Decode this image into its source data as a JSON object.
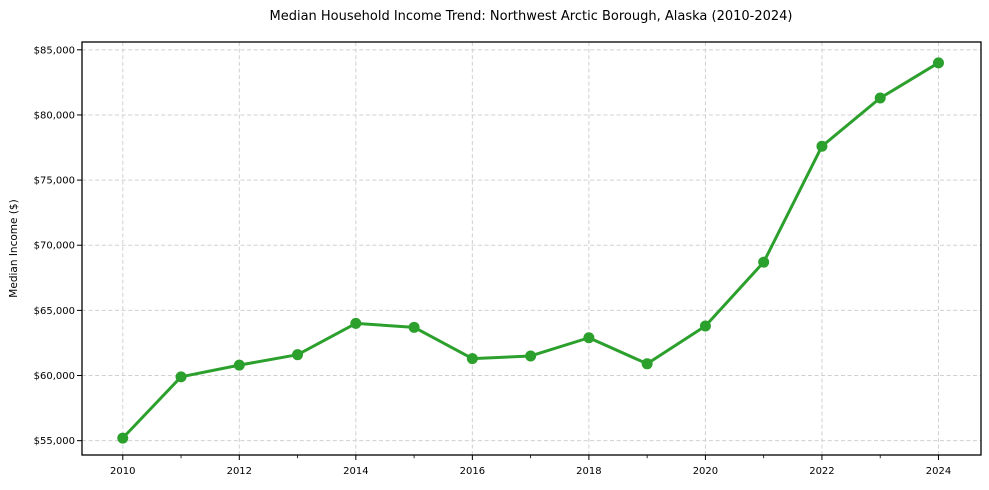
{
  "chart_data": {
    "type": "line",
    "title": "Median Household Income Trend: Northwest Arctic Borough, Alaska (2010-2024)",
    "xlabel": "",
    "ylabel": "Median Income ($)",
    "x": [
      2010,
      2011,
      2012,
      2013,
      2014,
      2015,
      2016,
      2017,
      2018,
      2019,
      2020,
      2021,
      2022,
      2023,
      2024
    ],
    "values": [
      55200,
      59900,
      60800,
      61600,
      64000,
      63700,
      61300,
      61500,
      62900,
      60900,
      63800,
      68700,
      77600,
      81300,
      84000
    ],
    "xlim": [
      2009.3,
      2024.73
    ],
    "ylim": [
      53900,
      85600
    ],
    "x_major_ticks": [
      {
        "value": 2010,
        "label": "2010"
      },
      {
        "value": 2012,
        "label": "2012"
      },
      {
        "value": 2014,
        "label": "2014"
      },
      {
        "value": 2016,
        "label": "2016"
      },
      {
        "value": 2018,
        "label": "2018"
      },
      {
        "value": 2020,
        "label": "2020"
      },
      {
        "value": 2022,
        "label": "2022"
      },
      {
        "value": 2024,
        "label": "2024"
      }
    ],
    "x_minor_ticks": [
      2011,
      2013,
      2015,
      2017,
      2019,
      2021,
      2023
    ],
    "y_ticks": [
      {
        "value": 55000,
        "label": "$55,000"
      },
      {
        "value": 60000,
        "label": "$60,000"
      },
      {
        "value": 65000,
        "label": "$65,000"
      },
      {
        "value": 70000,
        "label": "$70,000"
      },
      {
        "value": 75000,
        "label": "$75,000"
      },
      {
        "value": 80000,
        "label": "$80,000"
      },
      {
        "value": 85000,
        "label": "$85,000"
      }
    ],
    "grid": "dashed",
    "legend": "none",
    "colors": {
      "line": "#2ca02c",
      "marker": "#2ca02c",
      "grid": "#d0d0d0",
      "spine": "#000000",
      "background": "#ffffff"
    }
  }
}
